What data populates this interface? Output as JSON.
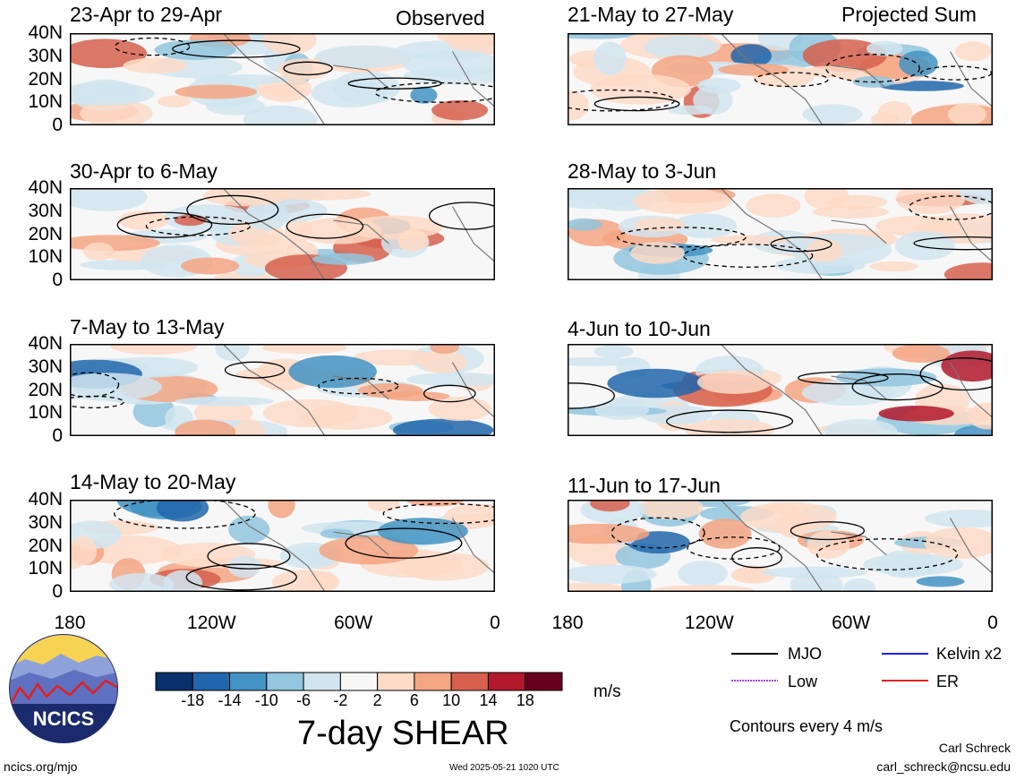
{
  "chart_data": {
    "type": "heatmap",
    "title": "7-day SHEAR",
    "units": "m/s",
    "colorbar": {
      "ticks": [
        "-18",
        "-14",
        "-10",
        "-6",
        "-2",
        "2",
        "6",
        "10",
        "14",
        "18"
      ],
      "colors": [
        "#08306b",
        "#2166ac",
        "#4393c3",
        "#92c5de",
        "#d1e5f0",
        "#f7f7f7",
        "#fddbc7",
        "#f4a582",
        "#d6604d",
        "#b2182b",
        "#67001f"
      ]
    },
    "x_ticks": [
      "180",
      "120W",
      "60W",
      "0"
    ],
    "y_ticks": [
      "40N",
      "30N",
      "20N",
      "10N",
      "0"
    ],
    "column_labels": {
      "left": "Observed",
      "right": "Projected Sum"
    },
    "panels": [
      {
        "period": "23-Apr to 29-Apr",
        "label": "Observed"
      },
      {
        "period": "30-Apr to 6-May"
      },
      {
        "period": "7-May to 13-May"
      },
      {
        "period": "14-May to 20-May"
      },
      {
        "period": "21-May to 27-May",
        "label": "Projected Sum"
      },
      {
        "period": "28-May to 3-Jun"
      },
      {
        "period": "4-Jun to 10-Jun"
      },
      {
        "period": "11-Jun to 17-Jun"
      }
    ],
    "legend": [
      {
        "name": "MJO",
        "color": "#000000"
      },
      {
        "name": "Kelvin x2",
        "color": "#1a1aff"
      },
      {
        "name": "Low",
        "color": "#a040e0"
      },
      {
        "name": "ER",
        "color": "#e02020"
      }
    ],
    "contour_note": "Contours every 4 m/s"
  },
  "footer": {
    "url": "ncics.org/mjo",
    "timestamp": "Wed 2025-05-21 1020 UTC",
    "author": "Carl Schreck",
    "email": "carl_schreck@ncsu.edu",
    "logo_text": "NCICS"
  }
}
